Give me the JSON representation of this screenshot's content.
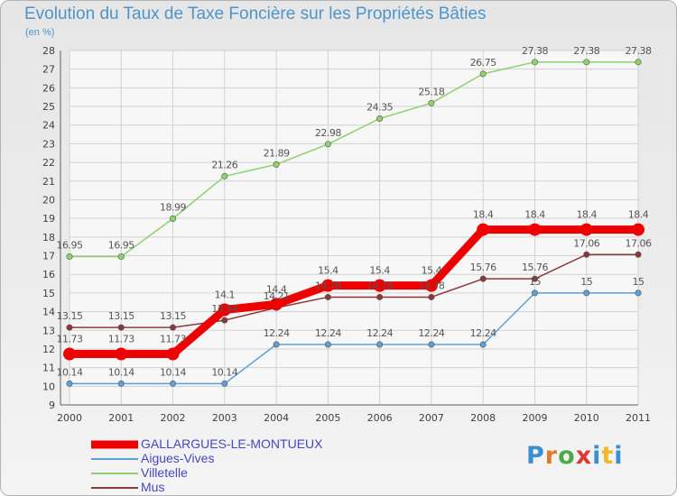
{
  "header": {
    "title": "Evolution du Taux de Taxe Foncière sur les Propriétés Bâties",
    "unit": "(en %)"
  },
  "logo": {
    "text": "Proxiti"
  },
  "colors": {
    "grid": "#d2d2d2",
    "axis": "#606060",
    "tick_text": "#404040",
    "label_text": "#555555",
    "title": "#4e94c8",
    "legend_text": "#4646c8"
  },
  "chart_data": {
    "type": "line",
    "title": "Evolution du Taux de Taxe Foncière sur les Propriétés Bâties",
    "ylabel": "(en %)",
    "xlabel": "",
    "categories": [
      "2000",
      "2001",
      "2002",
      "2003",
      "2004",
      "2005",
      "2006",
      "2007",
      "2008",
      "2009",
      "2010",
      "2011"
    ],
    "ylim": [
      9,
      28
    ],
    "yticks": [
      9,
      10,
      11,
      12,
      13,
      14,
      15,
      16,
      17,
      18,
      19,
      20,
      21,
      22,
      23,
      24,
      25,
      26,
      27,
      28
    ],
    "grid": true,
    "legend_position": "bottom-left",
    "series": [
      {
        "name": "GALLARGUES-LE-MONTUEUX",
        "color": "#ee0000",
        "emphasis": true,
        "values": [
          11.73,
          11.73,
          11.73,
          14.1,
          14.4,
          15.4,
          15.4,
          15.4,
          18.4,
          18.4,
          18.4,
          18.4
        ]
      },
      {
        "name": "Aigues-Vives",
        "color": "#5f9fd6",
        "emphasis": false,
        "values": [
          10.14,
          10.14,
          10.14,
          10.14,
          12.24,
          12.24,
          12.24,
          12.24,
          12.24,
          15,
          15,
          15
        ]
      },
      {
        "name": "Villetelle",
        "color": "#8fd16a",
        "emphasis": false,
        "values": [
          16.95,
          16.95,
          18.99,
          21.26,
          21.89,
          22.98,
          24.35,
          25.18,
          26.75,
          27.38,
          27.38,
          27.38
        ]
      },
      {
        "name": "Mus",
        "color": "#8b3838",
        "emphasis": false,
        "values": [
          13.15,
          13.15,
          13.15,
          13.54,
          14.21,
          14.78,
          14.78,
          14.78,
          15.76,
          15.76,
          17.06,
          17.06
        ]
      }
    ]
  }
}
